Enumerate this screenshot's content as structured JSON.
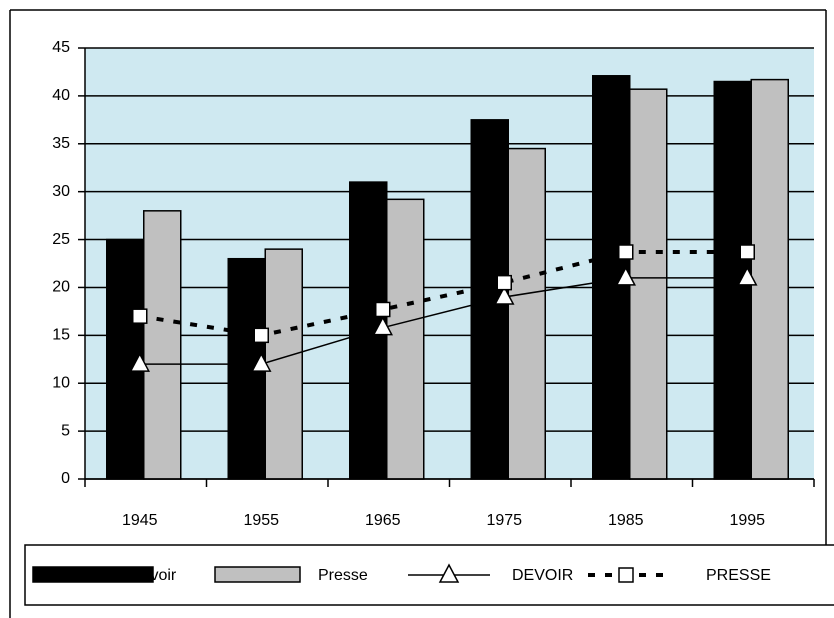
{
  "chart_data": {
    "type": "bar",
    "categories": [
      "1945",
      "1955",
      "1965",
      "1975",
      "1985",
      "1995"
    ],
    "series": [
      {
        "name": "Devoir",
        "type": "bar",
        "color": "#000000",
        "values": [
          25,
          23,
          31,
          37.5,
          42.1,
          41.5
        ]
      },
      {
        "name": "Presse",
        "type": "bar",
        "color": "#c0c0c0",
        "values": [
          28,
          24,
          29.2,
          34.5,
          40.7,
          41.7
        ]
      },
      {
        "name": "DEVOIR",
        "type": "line",
        "color": "#000000",
        "marker": "triangle",
        "dashed": false,
        "values": [
          12,
          12,
          15.8,
          19,
          21,
          21
        ]
      },
      {
        "name": "PRESSE",
        "type": "line",
        "color": "#000000",
        "marker": "square",
        "dashed": true,
        "values": [
          17,
          15,
          17.7,
          20.5,
          23.7,
          23.7
        ]
      }
    ],
    "ylim": [
      0,
      45
    ],
    "yticks": [
      0,
      5,
      10,
      15,
      20,
      25,
      30,
      35,
      40,
      45
    ],
    "grid": true,
    "background": "#cfe9f1",
    "legend": "bottom"
  }
}
